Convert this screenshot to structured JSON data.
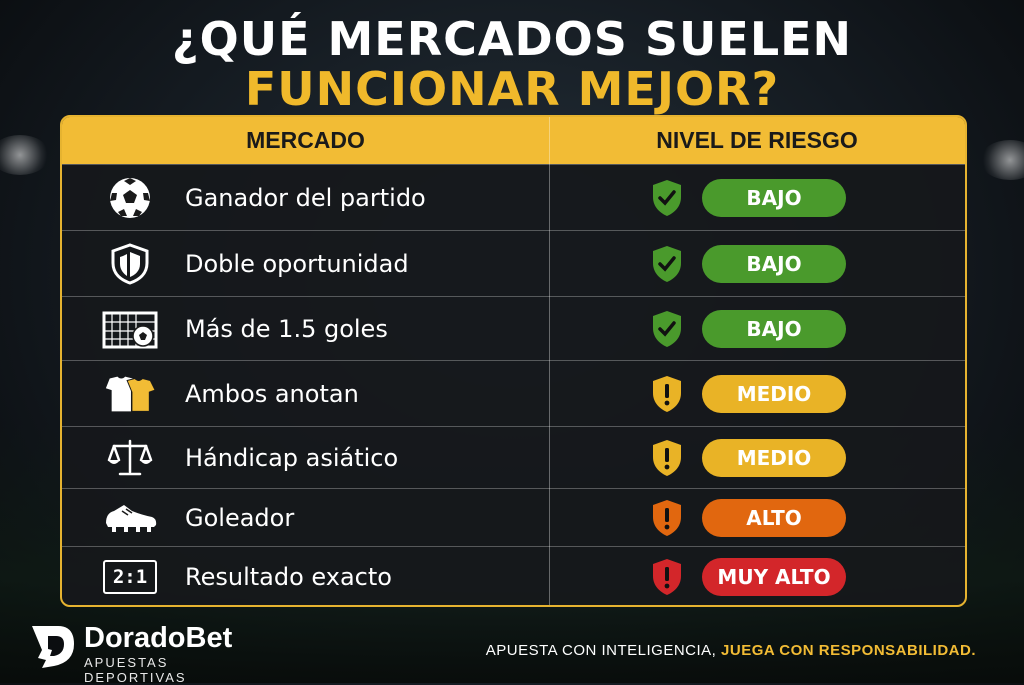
{
  "title": {
    "line1": "¿QUÉ MERCADOS SUELEN",
    "line2": "FUNCIONAR MEJOR?"
  },
  "table": {
    "headers": {
      "market": "MERCADO",
      "risk": "NIVEL DE RIESGO"
    },
    "rows": [
      {
        "icon": "soccer-ball-icon",
        "label": "Ganador del partido",
        "risk": "BAJO",
        "risk_color": "#4a9a2c",
        "shield": "check"
      },
      {
        "icon": "shield-icon",
        "label": "Doble oportunidad",
        "risk": "BAJO",
        "risk_color": "#4a9a2c",
        "shield": "check"
      },
      {
        "icon": "goal-net-icon",
        "label": "Más de 1.5 goles",
        "risk": "BAJO",
        "risk_color": "#4a9a2c",
        "shield": "check"
      },
      {
        "icon": "jerseys-icon",
        "label": "Ambos anotan",
        "risk": "MEDIO",
        "risk_color": "#e9b326",
        "shield": "exclamation"
      },
      {
        "icon": "scales-icon",
        "label": "Hándicap asiático",
        "risk": "MEDIO",
        "risk_color": "#e9b326",
        "shield": "exclamation"
      },
      {
        "icon": "football-boot-icon",
        "label": "Goleador",
        "risk": "ALTO",
        "risk_color": "#e1670f",
        "shield": "exclamation"
      },
      {
        "icon": "scoreboard-icon",
        "label": "Resultado exacto",
        "risk": "MUY ALTO",
        "risk_color": "#d3262a",
        "shield": "exclamation"
      }
    ],
    "scoreboard_text": "2:1"
  },
  "brand": {
    "name": "DoradoBet",
    "tagline": "APUESTAS DEPORTIVAS"
  },
  "slogan": {
    "part1": "APUESTA CON INTELIGENCIA,",
    "part2": "JUEGA CON RESPONSABILIDAD."
  },
  "colors": {
    "accent": "#f2bc35",
    "low": "#4a9a2c",
    "medium": "#e9b326",
    "high": "#e1670f",
    "very_high": "#d3262a"
  }
}
